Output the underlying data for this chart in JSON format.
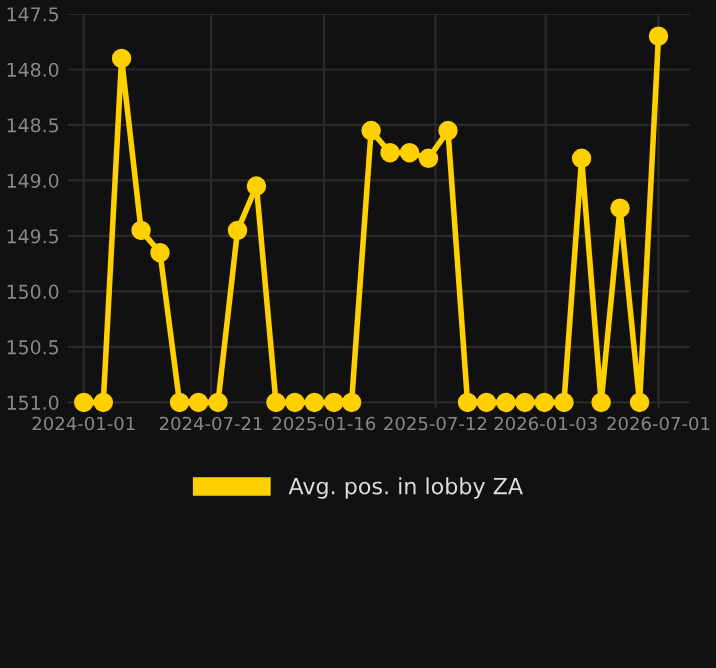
{
  "chart_data": {
    "type": "line",
    "x": [
      "2024-01-01",
      "2024-02-01",
      "2024-03-01",
      "2024-04-01",
      "2024-05-01",
      "2024-06-01",
      "2024-07-01",
      "2024-08-01",
      "2024-09-01",
      "2024-10-01",
      "2024-11-01",
      "2024-12-01",
      "2025-01-01",
      "2025-02-01",
      "2025-03-01",
      "2025-04-01",
      "2025-05-01",
      "2025-06-01",
      "2025-07-01",
      "2025-08-01",
      "2025-09-01",
      "2025-10-01",
      "2025-11-01",
      "2025-12-01",
      "2026-01-01",
      "2026-02-01",
      "2026-03-01",
      "2026-04-01",
      "2026-05-01",
      "2026-06-01",
      "2026-07-01"
    ],
    "series": [
      {
        "name": "Avg. pos. in lobby ZA",
        "color": "#ffd000",
        "values": [
          151.0,
          151.0,
          147.9,
          149.45,
          149.65,
          151.0,
          151.0,
          151.0,
          149.45,
          149.05,
          151.0,
          151.0,
          151.0,
          151.0,
          151.0,
          148.55,
          148.75,
          148.75,
          148.8,
          148.55,
          151.0,
          151.0,
          151.0,
          151.0,
          151.0,
          151.0,
          148.8,
          151.0,
          149.25,
          151.0,
          147.7
        ]
      }
    ],
    "ylim": [
      151.05,
      147.5
    ],
    "yticks": [
      {
        "value": 147.5,
        "label": "147.5"
      },
      {
        "value": 148.0,
        "label": "148.0"
      },
      {
        "value": 148.5,
        "label": "148.5"
      },
      {
        "value": 149.0,
        "label": "149.0"
      },
      {
        "value": 149.5,
        "label": "149.5"
      },
      {
        "value": 150.0,
        "label": "150.0"
      },
      {
        "value": 150.5,
        "label": "150.5"
      },
      {
        "value": 151.0,
        "label": "151.0"
      }
    ],
    "xlim": [
      "2023-12-07",
      "2026-08-20"
    ],
    "xticks": [
      "2024-01-01",
      "2024-07-21",
      "2025-01-16",
      "2025-07-12",
      "2026-01-03",
      "2026-07-01"
    ],
    "grid": true,
    "legend": "bottom",
    "marker": "circle",
    "line_style": "solid"
  }
}
